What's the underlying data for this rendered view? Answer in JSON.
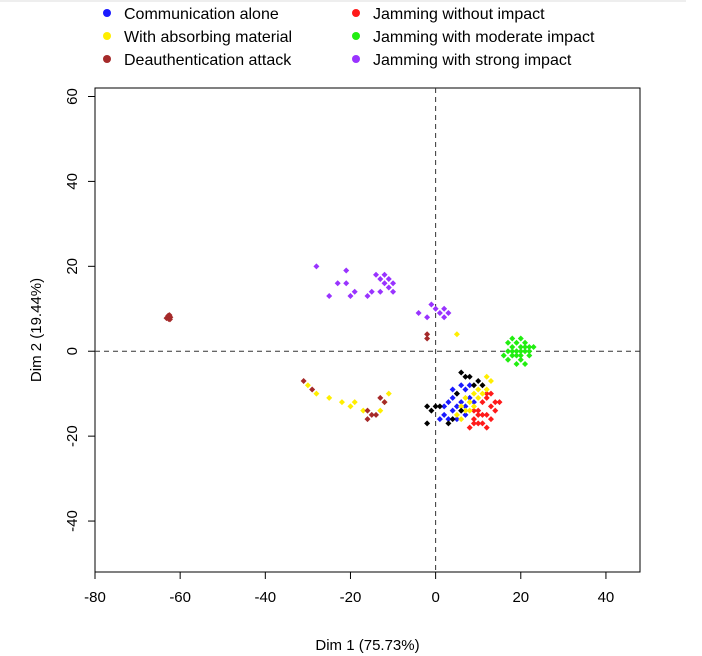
{
  "chart_data": {
    "type": "scatter",
    "title": "",
    "xlabel": "Dim 1 (75.73%)",
    "ylabel": "Dim 2 (19.44%)",
    "xlim": [
      -80,
      48
    ],
    "ylim": [
      -52,
      62
    ],
    "x_ticks": [
      -80,
      -60,
      -40,
      -20,
      0,
      20,
      40
    ],
    "y_ticks": [
      -40,
      -20,
      0,
      20,
      40,
      60
    ],
    "reference_lines": {
      "x": 0,
      "y": 0,
      "style": "dashed"
    },
    "legend_position": "top",
    "series": [
      {
        "name": "Communication alone",
        "color": "#1a1aff",
        "points": [
          [
            2,
            -15
          ],
          [
            3,
            -12
          ],
          [
            4,
            -14
          ],
          [
            5,
            -10
          ],
          [
            6,
            -12
          ],
          [
            7,
            -9
          ],
          [
            5,
            -13
          ],
          [
            4,
            -11
          ],
          [
            6,
            -14
          ],
          [
            8,
            -11
          ],
          [
            7,
            -13
          ],
          [
            3,
            -16
          ],
          [
            5,
            -16
          ],
          [
            6,
            -8
          ],
          [
            8,
            -8
          ],
          [
            4,
            -9
          ],
          [
            2,
            -13
          ],
          [
            1,
            -16
          ],
          [
            7,
            -15
          ],
          [
            9,
            -12
          ]
        ]
      },
      {
        "name": "Jamming without impact",
        "color": "#ff1a1a",
        "points": [
          [
            9,
            -16
          ],
          [
            10,
            -14
          ],
          [
            11,
            -12
          ],
          [
            12,
            -11
          ],
          [
            13,
            -13
          ],
          [
            12,
            -15
          ],
          [
            11,
            -17
          ],
          [
            10,
            -17
          ],
          [
            13,
            -10
          ],
          [
            14,
            -12
          ],
          [
            8,
            -18
          ],
          [
            9,
            -14
          ],
          [
            11,
            -15
          ],
          [
            14,
            -14
          ],
          [
            12,
            -18
          ],
          [
            13,
            -16
          ],
          [
            10,
            -15
          ],
          [
            15,
            -12
          ],
          [
            12,
            -10
          ],
          [
            9,
            -17
          ]
        ]
      },
      {
        "name": "With absorbing material",
        "color": "#ffee00",
        "points": [
          [
            5,
            -15
          ],
          [
            6,
            -13
          ],
          [
            7,
            -11
          ],
          [
            8,
            -12
          ],
          [
            9,
            -10
          ],
          [
            10,
            -9
          ],
          [
            11,
            -8
          ],
          [
            12,
            -6
          ],
          [
            8,
            -14
          ],
          [
            9,
            -13
          ],
          [
            7,
            -14
          ],
          [
            10,
            -11
          ],
          [
            12,
            -9
          ],
          [
            11,
            -10
          ],
          [
            6,
            -16
          ],
          [
            13,
            -7
          ],
          [
            5,
            4
          ],
          [
            -30,
            -8
          ],
          [
            -28,
            -10
          ],
          [
            -25,
            -11
          ],
          [
            -22,
            -12
          ],
          [
            -20,
            -13
          ],
          [
            -19,
            -12
          ],
          [
            -12,
            -12
          ],
          [
            -11,
            -10
          ],
          [
            -13,
            -14
          ],
          [
            -17,
            -14
          ]
        ]
      },
      {
        "name": "Jamming with moderate impact",
        "color": "#22ee11",
        "points": [
          [
            17,
            0
          ],
          [
            18,
            1
          ],
          [
            19,
            2
          ],
          [
            20,
            1
          ],
          [
            21,
            0
          ],
          [
            22,
            1
          ],
          [
            19,
            -1
          ],
          [
            20,
            -2
          ],
          [
            21,
            2
          ],
          [
            18,
            -1
          ],
          [
            22,
            -1
          ],
          [
            20,
            3
          ],
          [
            19,
            0
          ],
          [
            21,
            -3
          ],
          [
            17,
            2
          ],
          [
            16,
            -1
          ],
          [
            20,
            0
          ],
          [
            18,
            3
          ],
          [
            23,
            1
          ],
          [
            19,
            -3
          ],
          [
            21,
            1
          ],
          [
            18,
            0
          ],
          [
            20,
            -1
          ],
          [
            22,
            0
          ],
          [
            17,
            -2
          ]
        ]
      },
      {
        "name": "Deauthentication attack",
        "color": "#a52a2a",
        "points": [
          [
            -62.5,
            8.5
          ],
          [
            -63,
            8
          ],
          [
            -62.7,
            7.6
          ],
          [
            -62.3,
            8
          ],
          [
            -63.2,
            7.8
          ],
          [
            -62.8,
            8.4
          ],
          [
            -62.4,
            7.5
          ],
          [
            -16,
            -14
          ],
          [
            -15,
            -15
          ],
          [
            -16,
            -16
          ],
          [
            -14,
            -15
          ],
          [
            -13,
            -11
          ],
          [
            -12,
            -12
          ],
          [
            -31,
            -7
          ],
          [
            -29,
            -9
          ],
          [
            -2,
            4
          ],
          [
            -2,
            3
          ]
        ]
      },
      {
        "name": "Jamming with strong impact",
        "color": "#9933ff",
        "points": [
          [
            -28,
            20
          ],
          [
            -21,
            19
          ],
          [
            -21,
            16
          ],
          [
            -23,
            16
          ],
          [
            -20,
            13
          ],
          [
            -19,
            14
          ],
          [
            -16,
            13
          ],
          [
            -14,
            18
          ],
          [
            -13,
            17
          ],
          [
            -12,
            16
          ],
          [
            -11,
            17
          ],
          [
            -11,
            15
          ],
          [
            -10,
            14
          ],
          [
            -12,
            18
          ],
          [
            -10,
            16
          ],
          [
            -13,
            14
          ],
          [
            -15,
            14
          ],
          [
            -25,
            13
          ],
          [
            -1,
            11
          ],
          [
            0,
            10
          ],
          [
            2,
            8
          ],
          [
            1,
            9
          ],
          [
            3,
            9
          ],
          [
            2,
            10
          ],
          [
            -4,
            9
          ],
          [
            -2,
            8
          ]
        ]
      },
      {
        "name": "",
        "color": "#000000",
        "points": [
          [
            -2,
            -17
          ],
          [
            -1,
            -14
          ],
          [
            0,
            -13
          ],
          [
            1,
            -13
          ],
          [
            4,
            -16
          ],
          [
            6,
            -14
          ],
          [
            8,
            -6
          ],
          [
            9,
            -8
          ],
          [
            7,
            -6
          ],
          [
            6,
            -5
          ],
          [
            10,
            -7
          ],
          [
            5,
            -10
          ],
          [
            -2,
            -13
          ],
          [
            3,
            -17
          ],
          [
            11,
            -8
          ]
        ]
      }
    ]
  }
}
